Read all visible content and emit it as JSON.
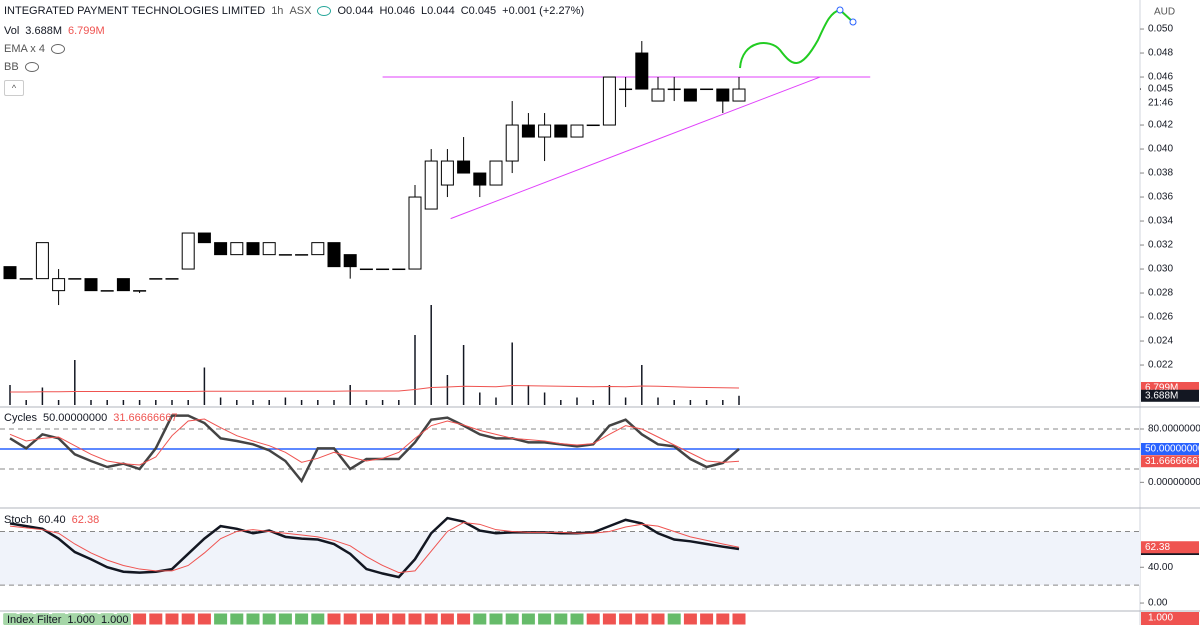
{
  "header": {
    "symbol": "INTEGRATED PAYMENT TECHNOLOGIES LIMITED",
    "interval": "1h",
    "exchange": "ASX",
    "ohlc": [
      {
        "key": "O",
        "text": "0.044"
      },
      {
        "key": "H",
        "text": "0.046"
      },
      {
        "key": "L",
        "text": "0.044"
      },
      {
        "key": "C",
        "text": "0.045"
      }
    ],
    "change": "+0.001 (+2.27%)",
    "vol_label": "Vol",
    "ema": "EMA x 4",
    "bb": "BB",
    "currency": "AUD",
    "countdown": "21:46"
  },
  "chart_data": [
    {
      "type": "candlestick",
      "open": [
        0.0302,
        0.0292,
        0.0292,
        0.0282,
        0.0292,
        0.0292,
        0.0282,
        0.0292,
        0.0282,
        0.0292,
        0.0292,
        0.03,
        0.033,
        0.0322,
        0.0312,
        0.0322,
        0.0312,
        0.0312,
        0.0312,
        0.0312,
        0.0322,
        0.0312,
        0.03,
        0.03,
        0.03,
        0.03,
        0.035,
        0.037,
        0.039,
        0.038,
        0.037,
        0.039,
        0.042,
        0.041,
        0.042,
        0.041,
        0.042,
        0.042,
        0.045,
        0.048,
        0.044,
        0.045,
        0.045,
        0.045,
        0.045,
        0.044
      ],
      "high": [
        0.0302,
        0.0292,
        0.0322,
        0.03,
        0.0292,
        0.0292,
        0.0282,
        0.0292,
        0.0282,
        0.0292,
        0.0292,
        0.033,
        0.033,
        0.0322,
        0.0322,
        0.0322,
        0.0322,
        0.0312,
        0.0312,
        0.0322,
        0.0322,
        0.0312,
        0.03,
        0.03,
        0.03,
        0.037,
        0.04,
        0.04,
        0.041,
        0.038,
        0.039,
        0.044,
        0.043,
        0.043,
        0.042,
        0.042,
        0.042,
        0.046,
        0.046,
        0.049,
        0.046,
        0.046,
        0.045,
        0.045,
        0.045,
        0.046
      ],
      "low": [
        0.0292,
        0.0292,
        0.0292,
        0.027,
        0.0292,
        0.0282,
        0.0282,
        0.0282,
        0.028,
        0.0292,
        0.0292,
        0.03,
        0.0322,
        0.0312,
        0.0312,
        0.0312,
        0.0312,
        0.0312,
        0.0312,
        0.0312,
        0.0302,
        0.0292,
        0.03,
        0.03,
        0.03,
        0.03,
        0.035,
        0.036,
        0.038,
        0.036,
        0.037,
        0.038,
        0.041,
        0.039,
        0.041,
        0.041,
        0.042,
        0.042,
        0.0435,
        0.045,
        0.044,
        0.044,
        0.044,
        0.045,
        0.043,
        0.044
      ],
      "close": [
        0.0292,
        0.0292,
        0.0322,
        0.0292,
        0.0292,
        0.0282,
        0.0282,
        0.0282,
        0.0282,
        0.0292,
        0.0292,
        0.033,
        0.0322,
        0.0312,
        0.0322,
        0.0312,
        0.0322,
        0.0312,
        0.0312,
        0.0322,
        0.0302,
        0.0302,
        0.03,
        0.03,
        0.03,
        0.036,
        0.039,
        0.039,
        0.038,
        0.037,
        0.039,
        0.042,
        0.041,
        0.042,
        0.041,
        0.042,
        0.042,
        0.046,
        0.045,
        0.045,
        0.045,
        0.045,
        0.044,
        0.045,
        0.044,
        0.045
      ],
      "close_label": "0.045",
      "up_color": "#ffffff",
      "down_color": "#000000",
      "ylim": [
        0.01867,
        0.05242
      ],
      "yticks": [
        {
          "value": 0.022,
          "label": "0.022"
        },
        {
          "value": 0.024,
          "label": "0.024"
        },
        {
          "value": 0.026,
          "label": "0.026"
        },
        {
          "value": 0.028,
          "label": "0.028"
        },
        {
          "value": 0.03,
          "label": "0.030"
        },
        {
          "value": 0.032,
          "label": "0.032"
        },
        {
          "value": 0.034,
          "label": "0.034"
        },
        {
          "value": 0.036,
          "label": "0.036"
        },
        {
          "value": 0.038,
          "label": "0.038"
        },
        {
          "value": 0.04,
          "label": "0.040"
        },
        {
          "value": 0.042,
          "label": "0.042"
        },
        {
          "value": 0.046,
          "label": "0.046"
        },
        {
          "value": 0.048,
          "label": "0.048"
        },
        {
          "value": 0.05,
          "label": "0.050"
        }
      ],
      "volume": {
        "axis": "y2",
        "color": "#131722",
        "values": [
          8,
          2,
          7,
          2,
          18,
          2,
          2,
          2,
          2,
          2,
          2,
          2,
          15,
          3,
          2,
          2,
          2,
          3,
          2,
          2,
          2,
          8,
          2,
          2,
          2,
          28,
          40,
          12,
          24,
          5,
          3,
          25,
          8,
          5,
          2,
          3,
          2,
          8,
          3,
          16,
          3,
          2,
          2,
          2,
          2,
          3.688
        ],
        "value_label": "3.688M",
        "ma_color": "#ef5350",
        "ma": [
          5.2,
          5.2,
          5.3,
          5.3,
          5.4,
          5.4,
          5.4,
          5.4,
          5.4,
          5.4,
          5.4,
          5.4,
          5.5,
          5.5,
          5.5,
          5.5,
          5.5,
          5.5,
          5.5,
          5.5,
          5.5,
          5.6,
          5.6,
          5.6,
          5.6,
          6.2,
          7.0,
          7.2,
          7.5,
          7.4,
          7.3,
          7.8,
          7.7,
          7.6,
          7.5,
          7.4,
          7.3,
          7.4,
          7.3,
          7.6,
          7.5,
          7.3,
          7.1,
          7.0,
          6.9,
          6.799
        ],
        "ma_label": "6.799M"
      },
      "y2lim": [
        0,
        162
      ],
      "trend_color": "#e040fb",
      "trend_lines": [
        {
          "x": [
            23.0,
            53.1
          ],
          "y": [
            0.046,
            0.046
          ]
        },
        {
          "x": [
            27.2,
            50.0
          ],
          "y": [
            0.0342,
            0.046
          ]
        }
      ]
    },
    {
      "type": "line",
      "title": "Cycles",
      "ylim": [
        -37,
        110
      ],
      "yticks": [
        {
          "value": 80,
          "label": "80.00000000"
        },
        {
          "value": 0,
          "label": "0.00000000"
        }
      ],
      "levels": [
        80,
        20
      ],
      "midline": 50,
      "midline_color": "#2962ff",
      "series": [
        {
          "color": "#444444",
          "values": [
            66,
            51,
            72,
            66,
            42,
            32,
            23,
            28,
            20,
            51,
            100,
            100,
            89,
            66,
            62,
            57,
            48,
            32,
            2,
            51,
            51,
            20,
            35,
            35,
            35,
            60,
            94,
            97,
            85,
            72,
            66,
            66,
            60,
            60,
            57,
            54,
            57,
            85,
            94,
            72,
            57,
            54,
            35,
            23,
            29,
            50
          ],
          "value_label": "50.00000000"
        },
        {
          "color": "#ef5350",
          "values": [
            72,
            62,
            66,
            68,
            55,
            42,
            32,
            28,
            26,
            38,
            70,
            92,
            95,
            82,
            70,
            62,
            55,
            45,
            30,
            36,
            45,
            38,
            32,
            36,
            45,
            66,
            85,
            92,
            86,
            78,
            72,
            66,
            64,
            62,
            58,
            56,
            58,
            72,
            85,
            80,
            68,
            56,
            44,
            32,
            30,
            31.66666667
          ],
          "value_label": "31.66666667"
        }
      ]
    },
    {
      "type": "line",
      "title": "Stoch",
      "ylim": [
        -10,
        104
      ],
      "yticks": [
        {
          "value": 40,
          "label": "40.00"
        },
        {
          "value": 0,
          "label": "0.00"
        }
      ],
      "levels": [
        80,
        20
      ],
      "band_color": "#f0f3fa",
      "series": [
        {
          "color": "#131722",
          "values": [
            89,
            86,
            83,
            72,
            57,
            49,
            40,
            35,
            34,
            35,
            38,
            55,
            72,
            86,
            83,
            78,
            81,
            74,
            72,
            71,
            66,
            55,
            38,
            33,
            29,
            49,
            78,
            95,
            91,
            81,
            78,
            79,
            79,
            79,
            78,
            78,
            79,
            86,
            93,
            89,
            78,
            71,
            69,
            66,
            63,
            60.4
          ],
          "value_label": "60.40"
        },
        {
          "color": "#ef5350",
          "values": [
            86,
            84,
            82,
            78,
            66,
            56,
            48,
            42,
            38,
            36,
            36,
            42,
            56,
            72,
            80,
            82,
            80,
            78,
            76,
            74,
            70,
            64,
            52,
            42,
            34,
            36,
            58,
            80,
            90,
            88,
            82,
            80,
            79,
            79,
            79,
            78,
            78,
            80,
            85,
            88,
            86,
            80,
            74,
            70,
            66,
            62.38
          ],
          "value_label": "62.38"
        }
      ]
    }
  ],
  "index_filter": {
    "label": "Index Filter",
    "values": [
      "1.000",
      "1.000"
    ],
    "axis_label": "1.000"
  }
}
